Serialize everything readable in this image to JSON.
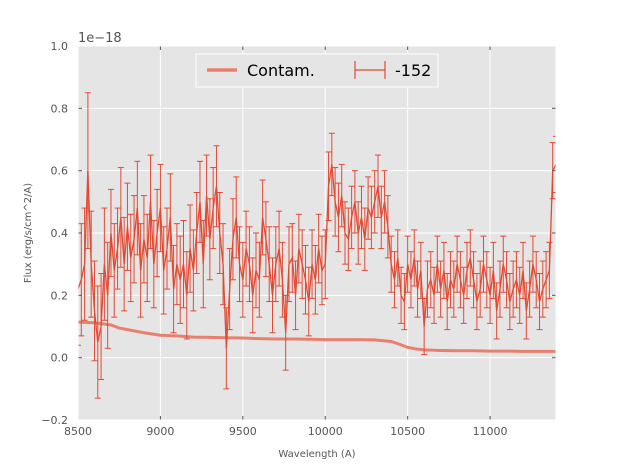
{
  "figure": {
    "offset_label": "1e−18",
    "xlabel": "Wavelength (A)",
    "ylabel": "Flux (erg/s/cm^2/A)"
  },
  "chart_data": {
    "type": "line",
    "xlabel": "Wavelength (A)",
    "ylabel": "Flux (erg/s/cm^2/A)",
    "y_offset_text": "1e−18",
    "xlim": [
      8500,
      11400
    ],
    "ylim": [
      -0.2,
      1.0
    ],
    "x_ticks": [
      8500,
      9000,
      9500,
      10000,
      10500,
      11000
    ],
    "y_ticks": [
      -0.2,
      0.0,
      0.2,
      0.4,
      0.6,
      0.8,
      1.0
    ],
    "x_tick_labels": [
      "8500",
      "9000",
      "9500",
      "10000",
      "10500",
      "11000"
    ],
    "y_tick_labels": [
      "−0.2",
      "0.0",
      "0.2",
      "0.4",
      "0.6",
      "0.8",
      "1.0"
    ],
    "grid": true,
    "legend_position": "top-center",
    "colors": {
      "background": "#e5e5e5",
      "spectrum": "#e24a33",
      "contam": "#e8806e",
      "grid": "#ffffff"
    },
    "series": [
      {
        "name": "Contam.",
        "type": "line",
        "x": [
          8500,
          8600,
          8700,
          8750,
          8800,
          8900,
          9000,
          9100,
          9200,
          9300,
          9400,
          9500,
          9600,
          9700,
          9800,
          9900,
          10000,
          10100,
          10200,
          10300,
          10400,
          10450,
          10500,
          10550,
          10600,
          10650,
          10700,
          10800,
          10900,
          11000,
          11100,
          11200,
          11300,
          11400
        ],
        "y": [
          0.114,
          0.112,
          0.105,
          0.095,
          0.09,
          0.08,
          0.072,
          0.07,
          0.066,
          0.065,
          0.064,
          0.063,
          0.061,
          0.06,
          0.06,
          0.059,
          0.058,
          0.058,
          0.058,
          0.057,
          0.052,
          0.043,
          0.033,
          0.028,
          0.025,
          0.024,
          0.023,
          0.022,
          0.022,
          0.021,
          0.021,
          0.02,
          0.02,
          0.02
        ]
      },
      {
        "name": "-152",
        "type": "errorbar",
        "x": [
          8500,
          8520,
          8540,
          8560,
          8580,
          8600,
          8620,
          8640,
          8660,
          8680,
          8700,
          8720,
          8740,
          8760,
          8780,
          8800,
          8820,
          8840,
          8860,
          8880,
          8900,
          8920,
          8940,
          8960,
          8980,
          9000,
          9020,
          9040,
          9060,
          9080,
          9100,
          9120,
          9140,
          9160,
          9180,
          9200,
          9220,
          9240,
          9260,
          9280,
          9300,
          9320,
          9340,
          9360,
          9380,
          9400,
          9420,
          9440,
          9460,
          9480,
          9500,
          9520,
          9540,
          9560,
          9580,
          9600,
          9620,
          9640,
          9660,
          9680,
          9700,
          9720,
          9740,
          9760,
          9780,
          9800,
          9820,
          9840,
          9860,
          9880,
          9900,
          9920,
          9940,
          9960,
          9980,
          10000,
          10020,
          10040,
          10060,
          10080,
          10100,
          10120,
          10140,
          10160,
          10180,
          10200,
          10220,
          10240,
          10260,
          10280,
          10300,
          10320,
          10340,
          10360,
          10380,
          10400,
          10420,
          10440,
          10460,
          10480,
          10500,
          10520,
          10540,
          10560,
          10580,
          10600,
          10620,
          10640,
          10660,
          10680,
          10700,
          10720,
          10740,
          10760,
          10780,
          10800,
          10820,
          10840,
          10860,
          10880,
          10900,
          10920,
          10940,
          10960,
          10980,
          11000,
          11020,
          11040,
          11060,
          11080,
          11100,
          11120,
          11140,
          11160,
          11180,
          11200,
          11220,
          11240,
          11260,
          11280,
          11300,
          11320,
          11340,
          11360,
          11380,
          11400
        ],
        "y": [
          0.22,
          0.25,
          0.3,
          0.6,
          0.3,
          0.15,
          0.05,
          0.1,
          0.3,
          0.2,
          0.4,
          0.28,
          0.35,
          0.45,
          0.3,
          0.42,
          0.32,
          0.38,
          0.48,
          0.28,
          0.38,
          0.32,
          0.5,
          0.3,
          0.4,
          0.48,
          0.28,
          0.35,
          0.45,
          0.22,
          0.3,
          0.25,
          0.3,
          0.2,
          0.35,
          0.28,
          0.4,
          0.5,
          0.3,
          0.52,
          0.38,
          0.48,
          0.55,
          0.4,
          0.3,
          0.03,
          0.22,
          0.38,
          0.45,
          0.3,
          0.25,
          0.35,
          0.3,
          0.2,
          0.28,
          0.25,
          0.45,
          0.38,
          0.3,
          0.2,
          0.3,
          0.35,
          0.25,
          0.08,
          0.3,
          0.32,
          0.2,
          0.35,
          0.3,
          0.25,
          0.18,
          0.3,
          0.25,
          0.35,
          0.28,
          0.3,
          0.55,
          0.62,
          0.5,
          0.45,
          0.52,
          0.4,
          0.38,
          0.45,
          0.5,
          0.4,
          0.45,
          0.38,
          0.48,
          0.45,
          0.5,
          0.55,
          0.45,
          0.5,
          0.42,
          0.3,
          0.25,
          0.32,
          0.2,
          0.18,
          0.3,
          0.25,
          0.32,
          0.22,
          0.28,
          0.1,
          0.22,
          0.25,
          0.2,
          0.3,
          0.22,
          0.28,
          0.18,
          0.25,
          0.22,
          0.3,
          0.25,
          0.2,
          0.28,
          0.32,
          0.25,
          0.18,
          0.22,
          0.3,
          0.25,
          0.2,
          0.28,
          0.15,
          0.22,
          0.3,
          0.25,
          0.18,
          0.22,
          0.25,
          0.2,
          0.28,
          0.15,
          0.22,
          0.3,
          0.25,
          0.18,
          0.22,
          0.25,
          0.28,
          0.6,
          0.62
        ],
        "err": [
          0.18,
          0.18,
          0.18,
          0.25,
          0.17,
          0.16,
          0.18,
          0.17,
          0.18,
          0.17,
          0.14,
          0.15,
          0.13,
          0.16,
          0.15,
          0.14,
          0.14,
          0.14,
          0.15,
          0.15,
          0.14,
          0.14,
          0.15,
          0.14,
          0.14,
          0.14,
          0.14,
          0.13,
          0.14,
          0.14,
          0.13,
          0.14,
          0.14,
          0.14,
          0.14,
          0.13,
          0.13,
          0.13,
          0.14,
          0.13,
          0.13,
          0.13,
          0.13,
          0.13,
          0.13,
          0.13,
          0.13,
          0.13,
          0.13,
          0.12,
          0.12,
          0.12,
          0.12,
          0.12,
          0.12,
          0.12,
          0.12,
          0.12,
          0.12,
          0.12,
          0.12,
          0.12,
          0.12,
          0.12,
          0.12,
          0.11,
          0.11,
          0.11,
          0.11,
          0.11,
          0.11,
          0.11,
          0.11,
          0.11,
          0.11,
          0.11,
          0.11,
          0.1,
          0.11,
          0.11,
          0.1,
          0.1,
          0.1,
          0.1,
          0.1,
          0.1,
          0.1,
          0.1,
          0.1,
          0.1,
          0.1,
          0.1,
          0.1,
          0.1,
          0.1,
          0.09,
          0.09,
          0.09,
          0.09,
          0.09,
          0.09,
          0.09,
          0.09,
          0.09,
          0.09,
          0.09,
          0.09,
          0.09,
          0.09,
          0.09,
          0.09,
          0.09,
          0.09,
          0.09,
          0.09,
          0.09,
          0.09,
          0.09,
          0.09,
          0.09,
          0.09,
          0.09,
          0.09,
          0.09,
          0.09,
          0.09,
          0.09,
          0.09,
          0.09,
          0.09,
          0.09,
          0.09,
          0.09,
          0.09,
          0.09,
          0.09,
          0.09,
          0.09,
          0.09,
          0.09,
          0.09,
          0.09,
          0.09,
          0.09,
          0.09,
          0.09
        ]
      }
    ]
  }
}
